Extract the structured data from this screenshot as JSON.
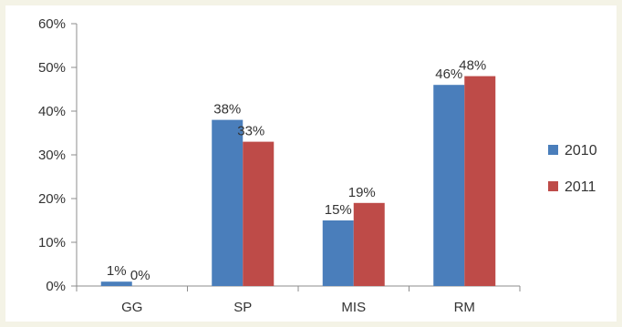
{
  "chart_data": {
    "type": "bar",
    "categories": [
      "GG",
      "SP",
      "MIS",
      "RM"
    ],
    "series": [
      {
        "name": "2010",
        "values": [
          1,
          38,
          15,
          46
        ],
        "labels": [
          "1%",
          "38%",
          "15%",
          "46%"
        ],
        "color": "#4a7ebb"
      },
      {
        "name": "2011",
        "values": [
          0,
          33,
          19,
          48
        ],
        "labels": [
          "0%",
          "33%",
          "19%",
          "48%"
        ],
        "color": "#be4b48"
      }
    ],
    "yticks": [
      "0%",
      "10%",
      "20%",
      "30%",
      "40%",
      "50%",
      "60%"
    ],
    "ylim": [
      0,
      60
    ],
    "legend_position": "right",
    "grid": false
  }
}
